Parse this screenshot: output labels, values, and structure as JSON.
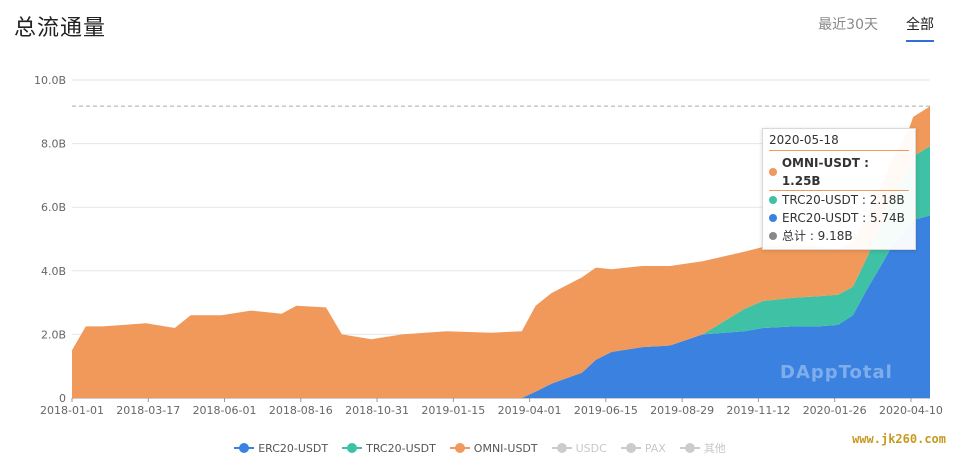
{
  "header": {
    "title": "总流通量"
  },
  "range_tabs": [
    {
      "label": "最近30天",
      "active": false
    },
    {
      "label": "全部",
      "active": true
    }
  ],
  "tooltip": {
    "date": "2020-05-18",
    "rows": [
      {
        "label": "OMNI-USDT : 1.25B",
        "color": "#f0995b",
        "highlight": true
      },
      {
        "label": "TRC20-USDT : 2.18B",
        "color": "#3ec1a4",
        "highlight": false
      },
      {
        "label": "ERC20-USDT : 5.74B",
        "color": "#3b82e0",
        "highlight": false
      },
      {
        "label": "总计 : 9.18B",
        "color": "#888888",
        "highlight": false
      }
    ]
  },
  "watermark": "DAppTotal",
  "site_label": "www.jk260.com",
  "chart_data": {
    "type": "area",
    "stacked": true,
    "ylim": [
      0,
      10
    ],
    "yunit": "B",
    "ytick_labels": [
      "0",
      "2.0B",
      "4.0B",
      "6.0B",
      "8.0B",
      "10.0B"
    ],
    "xtick_labels": [
      "2018-01-01",
      "2018-03-17",
      "2018-06-01",
      "2018-08-16",
      "2018-10-31",
      "2019-01-15",
      "2019-04-01",
      "2019-06-15",
      "2019-08-29",
      "2019-11-12",
      "2020-01-26",
      "2020-04-10"
    ],
    "x": [
      "2018-01-01",
      "2018-01-15",
      "2018-02-01",
      "2018-03-17",
      "2018-04-15",
      "2018-05-01",
      "2018-06-01",
      "2018-07-01",
      "2018-08-01",
      "2018-08-16",
      "2018-09-15",
      "2018-10-01",
      "2018-10-31",
      "2018-12-01",
      "2019-01-15",
      "2019-03-01",
      "2019-04-01",
      "2019-04-15",
      "2019-05-01",
      "2019-06-01",
      "2019-06-15",
      "2019-07-01",
      "2019-08-01",
      "2019-08-29",
      "2019-10-01",
      "2019-11-12",
      "2019-12-01",
      "2020-01-01",
      "2020-01-26",
      "2020-02-15",
      "2020-03-01",
      "2020-03-15",
      "2020-04-01",
      "2020-04-10",
      "2020-04-25",
      "2020-05-01",
      "2020-05-18"
    ],
    "series": [
      {
        "name": "ERC20-USDT",
        "color": "#3b82e0",
        "values": [
          0,
          0,
          0,
          0,
          0,
          0,
          0,
          0,
          0,
          0,
          0,
          0,
          0,
          0,
          0,
          0,
          0,
          0.2,
          0.45,
          0.8,
          1.2,
          1.45,
          1.6,
          1.65,
          2.0,
          2.1,
          2.2,
          2.25,
          2.25,
          2.3,
          2.6,
          3.4,
          4.3,
          4.8,
          5.3,
          5.6,
          5.74
        ]
      },
      {
        "name": "TRC20-USDT",
        "color": "#3ec1a4",
        "values": [
          0,
          0,
          0,
          0,
          0,
          0,
          0,
          0,
          0,
          0,
          0,
          0,
          0,
          0,
          0,
          0,
          0,
          0,
          0,
          0,
          0,
          0,
          0,
          0,
          0,
          0.7,
          0.85,
          0.9,
          0.95,
          0.95,
          0.9,
          1.0,
          1.3,
          1.5,
          1.8,
          2.0,
          2.18
        ]
      },
      {
        "name": "OMNI-USDT",
        "color": "#f0995b",
        "values": [
          1.5,
          2.25,
          2.25,
          2.35,
          2.2,
          2.6,
          2.6,
          2.75,
          2.65,
          2.9,
          2.85,
          2.0,
          1.85,
          2.0,
          2.1,
          2.05,
          2.1,
          2.7,
          2.85,
          3.0,
          2.9,
          2.6,
          2.55,
          2.5,
          2.3,
          1.8,
          1.7,
          1.65,
          1.55,
          1.45,
          1.4,
          1.3,
          1.25,
          1.2,
          1.22,
          1.24,
          1.25
        ]
      }
    ],
    "legend": [
      {
        "name": "ERC20-USDT",
        "color": "#3b82e0",
        "active": true
      },
      {
        "name": "TRC20-USDT",
        "color": "#3ec1a4",
        "active": true
      },
      {
        "name": "OMNI-USDT",
        "color": "#f0995b",
        "active": true
      },
      {
        "name": "USDC",
        "color": "#cccccc",
        "active": false
      },
      {
        "name": "PAX",
        "color": "#cccccc",
        "active": false
      },
      {
        "name": "其他",
        "color": "#cccccc",
        "active": false
      }
    ],
    "reference_line": 9.18,
    "legend_position": "bottom"
  }
}
